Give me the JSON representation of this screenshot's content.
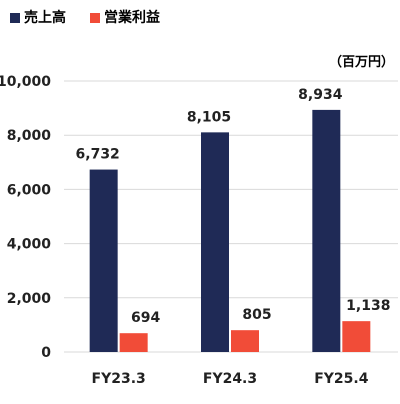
{
  "chart_data": {
    "type": "bar",
    "categories": [
      "FY23.3",
      "FY24.3",
      "FY25.4"
    ],
    "series": [
      {
        "name": "売上高",
        "values": [
          6732,
          8105,
          8934
        ],
        "color": "#1f2a56",
        "value_labels": [
          "6,732",
          "8,105",
          "8,934"
        ]
      },
      {
        "name": "営業利益",
        "values": [
          694,
          805,
          1138
        ],
        "color": "#f14c38",
        "value_labels": [
          "694",
          "805",
          "1,138"
        ]
      }
    ],
    "unit_label": "（百万円）",
    "ylim": [
      0,
      10000
    ],
    "yticks": [
      0,
      2000,
      4000,
      6000,
      8000,
      10000
    ],
    "ytick_labels": [
      "0",
      "2,000",
      "4,000",
      "6,000",
      "8,000",
      "10,000"
    ],
    "grid": true,
    "legend": "top-left",
    "grid_color": "#d9d9d9",
    "text_color": "#222222"
  }
}
